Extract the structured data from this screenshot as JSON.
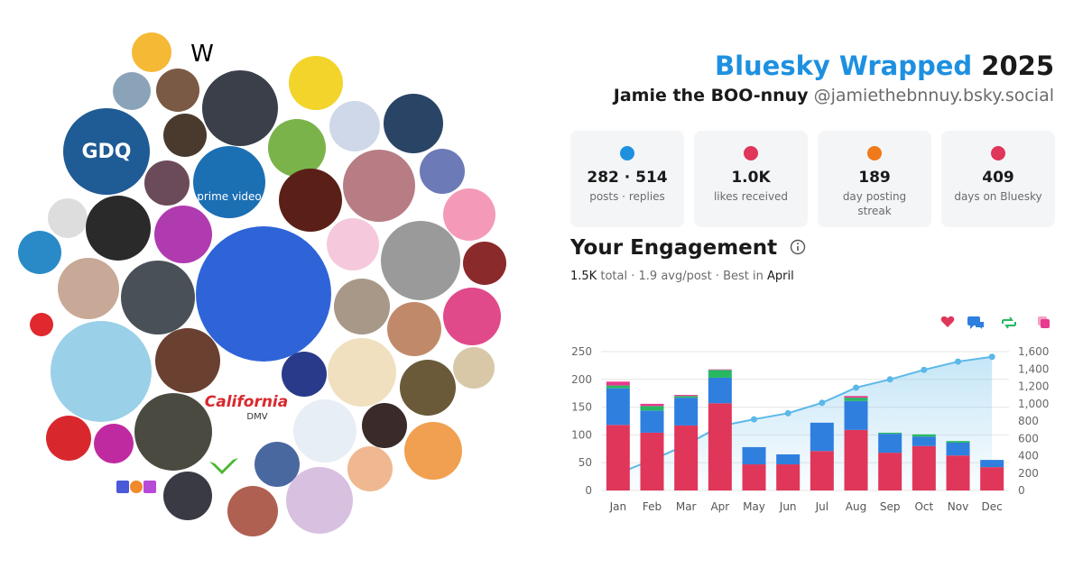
{
  "header": {
    "brand": "Bluesky Wrapped",
    "year": "2025",
    "display_name": "Jamie the BOO-nnuy",
    "handle": "@jamiethebnnuy.bsky.social"
  },
  "stats": [
    {
      "value": "282 · 514",
      "label": "posts · replies"
    },
    {
      "value": "1.0K",
      "label": "likes received"
    },
    {
      "value": "189",
      "label": "day posting streak"
    },
    {
      "value": "409",
      "label": "days on Bluesky"
    }
  ],
  "engagement": {
    "title": "Your Engagement",
    "total": "1.5K",
    "total_label": "total ·",
    "avg": "1.9",
    "avg_label": "avg/post · Best in",
    "best": "April"
  },
  "logos": [
    "W",
    "GDQ",
    "prime video",
    "California",
    "DMV"
  ],
  "chart_data": {
    "type": "bar",
    "stacked": true,
    "grid": true,
    "categories": [
      "Jan",
      "Feb",
      "Mar",
      "Apr",
      "May",
      "Jun",
      "Jul",
      "Aug",
      "Sep",
      "Oct",
      "Nov",
      "Dec"
    ],
    "series": [
      {
        "color": "#e0365a",
        "values": [
          118,
          104,
          117,
          157,
          47,
          47,
          71,
          109,
          68,
          80,
          63,
          42
        ]
      },
      {
        "color": "#2f7fdf",
        "values": [
          66,
          40,
          50,
          46,
          31,
          18,
          51,
          52,
          34,
          17,
          23,
          13
        ]
      },
      {
        "color": "#28b864",
        "values": [
          5,
          8,
          3,
          14,
          0,
          0,
          0,
          6,
          2,
          4,
          3,
          0
        ]
      },
      {
        "color": "#e83a8f",
        "values": [
          7,
          4,
          2,
          1,
          0,
          0,
          0,
          3,
          0,
          0,
          0,
          0
        ]
      },
      {
        "type": "area",
        "axis": "y2",
        "color": "#5bb8e8",
        "values": [
          196,
          352,
          524,
          742,
          820,
          890,
          1010,
          1185,
          1280,
          1390,
          1485,
          1540
        ]
      }
    ],
    "ylim": [
      0,
      250
    ],
    "yticks": [
      0,
      50,
      100,
      150,
      200,
      250
    ],
    "y2lim": [
      0,
      1600
    ],
    "y2ticks": [
      0,
      200,
      400,
      600,
      800,
      {
        "value": 1000,
        "label": "1,000"
      },
      {
        "value": 1200,
        "label": "1,200"
      },
      {
        "value": 1400,
        "label": "1,400"
      },
      {
        "value": 1600,
        "label": "1,600"
      }
    ]
  }
}
